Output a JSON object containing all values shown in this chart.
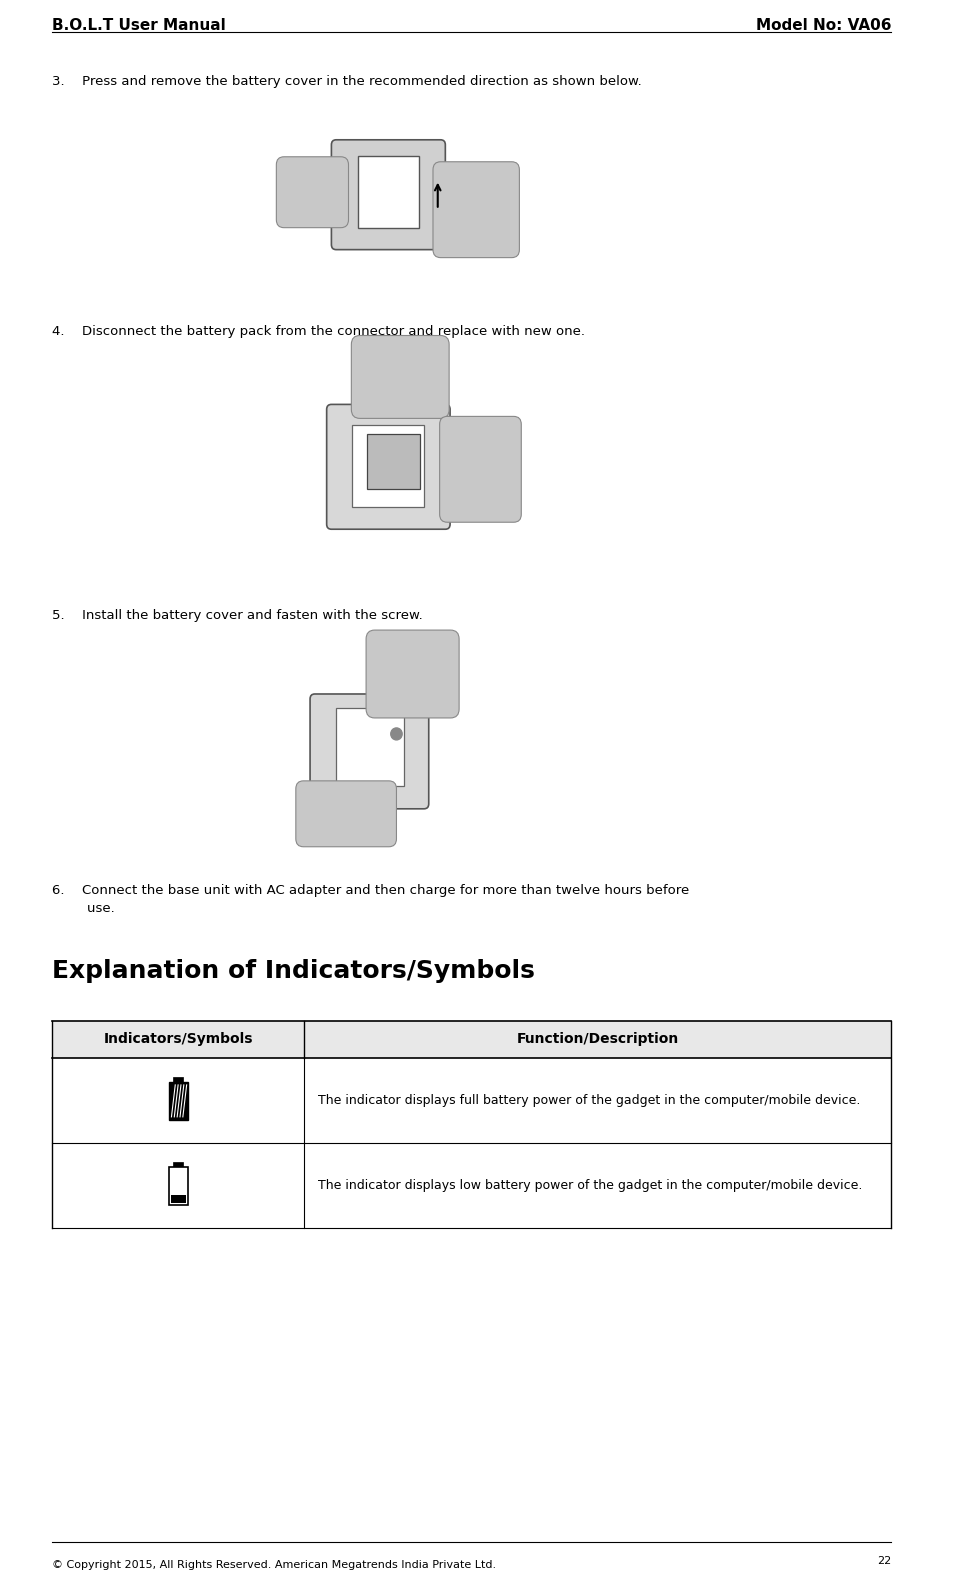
{
  "page_width": 9.74,
  "page_height": 15.72,
  "bg_color": "#ffffff",
  "header_left": "B.O.L.T User Manual",
  "header_right": "Model No: VA06",
  "header_font_size": 11,
  "footer_text": "© Copyright 2015, All Rights Reserved. American Megatrends India Private Ltd.",
  "footer_page_num": "22",
  "footer_font_size": 8,
  "step3_text": "3.  Press and remove the battery cover in the recommended direction as shown below.",
  "step4_text": "4.  Disconnect the battery pack from the connector and replace with new one.",
  "step5_text": "5.  Install the battery cover and fasten with the screw.",
  "step6_text": "6.  Connect the base unit with AC adapter and then charge for more than twelve hours before\n    use.",
  "section_title": "Explanation of Indicators/Symbols",
  "table_header_col1": "Indicators/Symbols",
  "table_header_col2": "Function/Description",
  "table_row1_desc": "The indicator displays full battery power of the gadget in the computer/mobile device.",
  "table_row2_desc": "The indicator displays low battery power of the gadget in the computer/mobile device.",
  "text_font_size": 9.5,
  "section_font_size": 18,
  "table_header_font_size": 10,
  "table_text_font_size": 9
}
